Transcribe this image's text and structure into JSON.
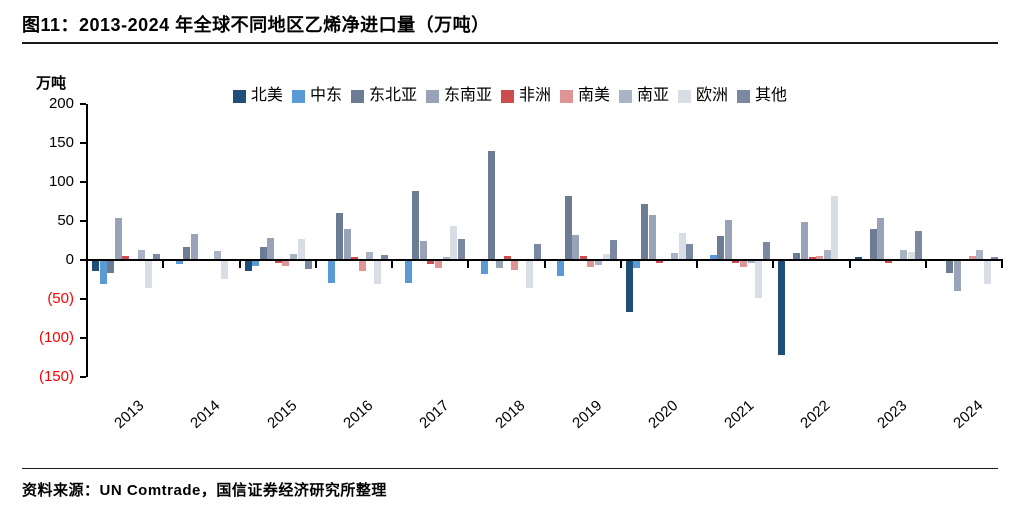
{
  "figure": {
    "title": "图11：2013-2024 年全球不同地区乙烯净进口量（万吨）",
    "source": "资料来源：UN Comtrade，国信证券经济研究所整理"
  },
  "chart_data": {
    "type": "bar",
    "title": "2013-2024 年全球不同地区乙烯净进口量（万吨）",
    "unit_label": "万吨",
    "xlabel": "",
    "ylabel": "万吨",
    "ylim": [
      -150,
      200
    ],
    "grid": false,
    "legend_position": "top-center",
    "negative_tick_color": "#ff0000",
    "axis_color": "#000000",
    "categories": [
      "2013",
      "2014",
      "2015",
      "2016",
      "2017",
      "2018",
      "2019",
      "2020",
      "2021",
      "2022",
      "2023",
      "2024"
    ],
    "y_ticks": [
      {
        "value": 200,
        "label": "200",
        "color": "#000000"
      },
      {
        "value": 150,
        "label": "150",
        "color": "#000000"
      },
      {
        "value": 100,
        "label": "100",
        "color": "#000000"
      },
      {
        "value": 50,
        "label": "50",
        "color": "#000000"
      },
      {
        "value": 0,
        "label": "0",
        "color": "#000000"
      },
      {
        "value": -50,
        "label": "(50)",
        "color": "#ff0000"
      },
      {
        "value": -100,
        "label": "(100)",
        "color": "#ff0000"
      },
      {
        "value": -150,
        "label": "(150)",
        "color": "#ff0000"
      }
    ],
    "series": [
      {
        "name": "北美",
        "color": "#1f4e79",
        "values": [
          -13,
          0,
          -13,
          0,
          0,
          0,
          0,
          -65,
          0,
          -120,
          2,
          0
        ]
      },
      {
        "name": "中东",
        "color": "#5b9bd5",
        "values": [
          -30,
          -4,
          -7,
          -28,
          -28,
          -17,
          -19,
          -9,
          5,
          0,
          0,
          0
        ]
      },
      {
        "name": "东北亚",
        "color": "#6d7c95",
        "values": [
          -15,
          16,
          16,
          59,
          87,
          139,
          81,
          70,
          30,
          8,
          38,
          -15
        ]
      },
      {
        "name": "东南亚",
        "color": "#98a3b8",
        "values": [
          52,
          32,
          27,
          38,
          23,
          -9,
          31,
          57,
          50,
          48,
          53,
          -38
        ]
      },
      {
        "name": "非洲",
        "color": "#cc4d4d",
        "values": [
          4,
          0,
          -3,
          3,
          -4,
          4,
          4,
          -2,
          -2,
          3,
          -2,
          0
        ]
      },
      {
        "name": "南美",
        "color": "#e09595",
        "values": [
          0,
          0,
          -7,
          -13,
          -9,
          -11,
          -8,
          0,
          -8,
          4,
          0,
          4
        ]
      },
      {
        "name": "南亚",
        "color": "#a9b3c6",
        "values": [
          12,
          10,
          6,
          9,
          2,
          0,
          -5,
          8,
          -3,
          12,
          11,
          11
        ]
      },
      {
        "name": "欧洲",
        "color": "#d8dde6",
        "values": [
          -34,
          -23,
          26,
          -29,
          42,
          -35,
          6,
          33,
          -47,
          81,
          9,
          -30
        ]
      },
      {
        "name": "其他",
        "color": "#7a89a1",
        "values": [
          7,
          0,
          -10,
          5,
          26,
          19,
          24,
          19,
          22,
          0,
          36,
          2
        ]
      }
    ]
  }
}
